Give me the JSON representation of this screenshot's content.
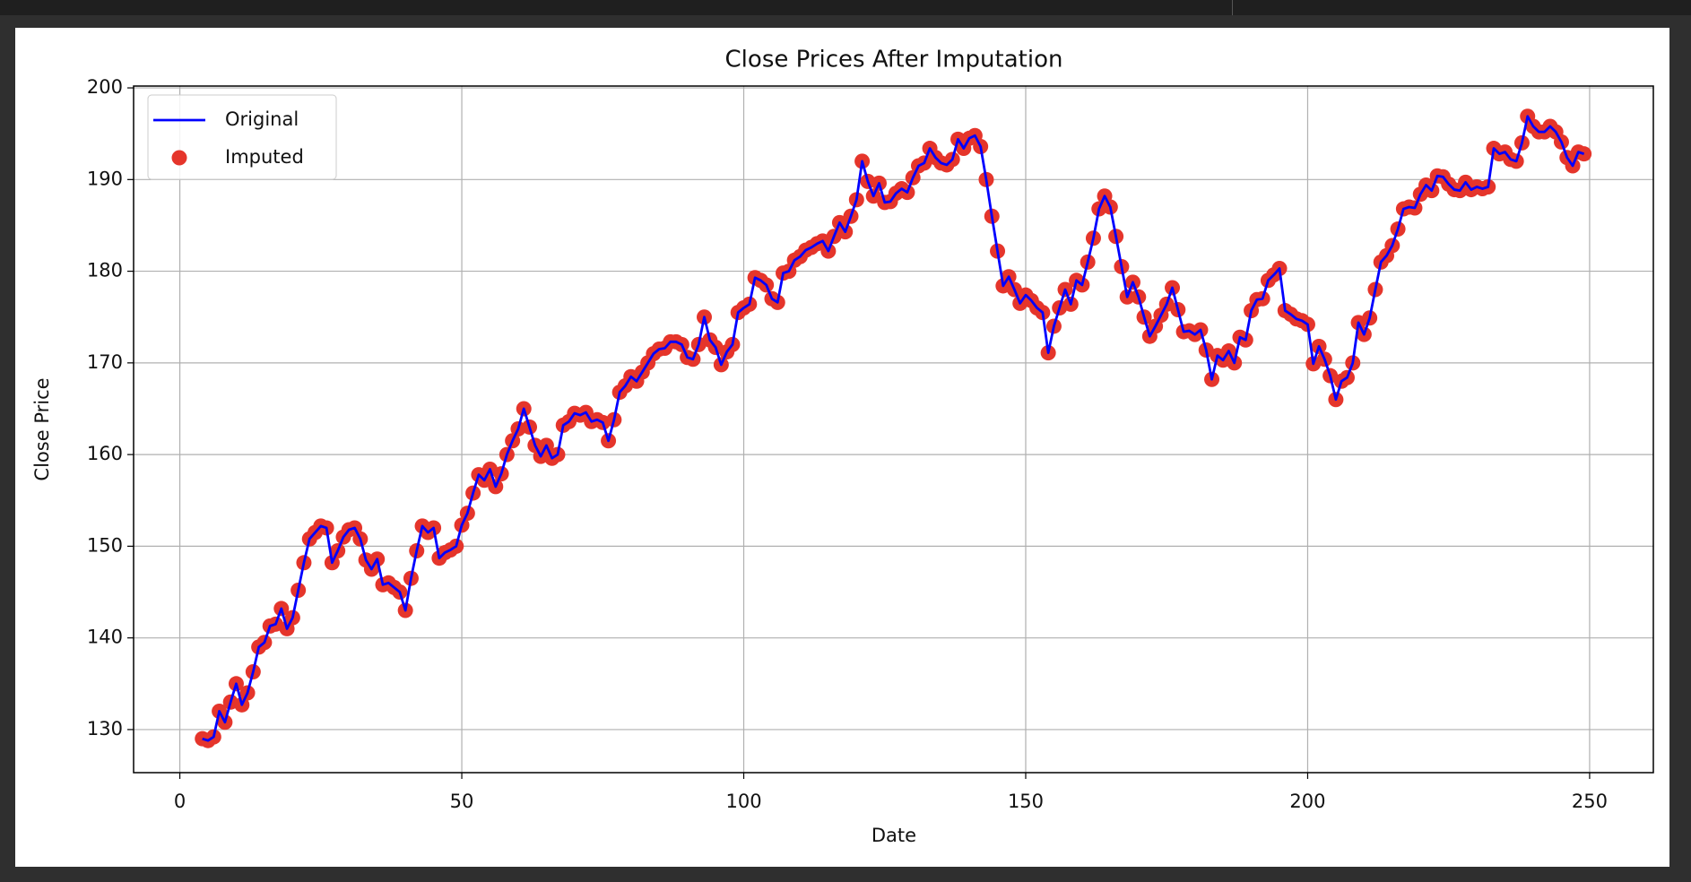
{
  "chart_data": {
    "type": "line",
    "title": "Close Prices After Imputation",
    "x_label": "Date",
    "y_label": "Close Price",
    "x": [
      4,
      5,
      6,
      7,
      8,
      9,
      10,
      11,
      12,
      13,
      14,
      15,
      16,
      17,
      18,
      19,
      20,
      21,
      22,
      23,
      24,
      25,
      26,
      27,
      28,
      29,
      30,
      31,
      32,
      33,
      34,
      35,
      36,
      37,
      38,
      39,
      40,
      41,
      42,
      43,
      44,
      45,
      46,
      47,
      48,
      49,
      50,
      51,
      52,
      53,
      54,
      55,
      56,
      57,
      58,
      59,
      60,
      61,
      62,
      63,
      64,
      65,
      66,
      67,
      68,
      69,
      70,
      71,
      72,
      73,
      74,
      75,
      76,
      77,
      78,
      79,
      80,
      81,
      82,
      83,
      84,
      85,
      86,
      87,
      88,
      89,
      90,
      91,
      92,
      93,
      94,
      95,
      96,
      97,
      98,
      99,
      100,
      101,
      102,
      103,
      104,
      105,
      106,
      107,
      108,
      109,
      110,
      111,
      112,
      113,
      114,
      115,
      116,
      117,
      118,
      119,
      120,
      121,
      122,
      123,
      124,
      125,
      126,
      127,
      128,
      129,
      130,
      131,
      132,
      133,
      134,
      135,
      136,
      137,
      138,
      139,
      140,
      141,
      142,
      143,
      144,
      145,
      146,
      147,
      148,
      149,
      150,
      151,
      152,
      153,
      154,
      155,
      156,
      157,
      158,
      159,
      160,
      161,
      162,
      163,
      164,
      165,
      166,
      167,
      168,
      169,
      170,
      171,
      172,
      173,
      174,
      175,
      176,
      177,
      178,
      179,
      180,
      181,
      182,
      183,
      184,
      185,
      186,
      187,
      188,
      189,
      190,
      191,
      192,
      193,
      194,
      195,
      196,
      197,
      198,
      199,
      200,
      201,
      202,
      203,
      204,
      205,
      206,
      207,
      208,
      209,
      210,
      211,
      212,
      213,
      214,
      215,
      216,
      217,
      218,
      219,
      220,
      221,
      222,
      223,
      224,
      225,
      226,
      227,
      228,
      229,
      230,
      231,
      232,
      233,
      234,
      235,
      236,
      237,
      238,
      239,
      240,
      241,
      242,
      243,
      244,
      245,
      246,
      247,
      248,
      249
    ],
    "series": [
      {
        "name": "Original",
        "color": "#0000ff",
        "style": "line",
        "values": [
          129,
          128.8,
          129.2,
          132,
          130.8,
          133,
          135,
          132.7,
          134,
          136.3,
          139,
          139.5,
          141.3,
          141.5,
          143.2,
          141,
          142.2,
          145.2,
          148.2,
          150.8,
          151.5,
          152.2,
          152,
          148.2,
          149.5,
          151,
          151.8,
          152,
          150.8,
          148.5,
          147.5,
          148.6,
          145.8,
          146,
          145.5,
          145,
          143,
          146.5,
          149.5,
          152.2,
          151.5,
          152,
          148.7,
          149.3,
          149.6,
          150,
          152.3,
          153.6,
          155.8,
          157.8,
          157.2,
          158.4,
          156.5,
          157.9,
          160,
          161.5,
          162.8,
          165,
          163,
          161,
          159.8,
          161,
          159.6,
          160,
          163.2,
          163.6,
          164.5,
          164.3,
          164.6,
          163.6,
          163.8,
          163.5,
          161.5,
          163.8,
          166.8,
          167.5,
          168.5,
          168,
          169,
          170,
          171,
          171.5,
          171.6,
          172.3,
          172.3,
          172,
          170.6,
          170.4,
          172,
          175,
          172.5,
          171.7,
          169.8,
          171.2,
          172,
          175.5,
          176,
          176.4,
          179.3,
          179,
          178.5,
          177,
          176.6,
          179.8,
          180,
          181.2,
          181.6,
          182.3,
          182.6,
          183,
          183.3,
          182.2,
          183.8,
          185.3,
          184.3,
          186,
          187.8,
          192,
          189.8,
          188.2,
          189.6,
          187.5,
          187.6,
          188.5,
          189,
          188.6,
          190.2,
          191.5,
          191.8,
          193.4,
          192.4,
          191.8,
          191.6,
          192.2,
          194.4,
          193.4,
          194.5,
          194.8,
          193.6,
          190,
          186,
          182.2,
          178.4,
          179.4,
          178,
          176.5,
          177.4,
          176.8,
          176,
          175.5,
          171.1,
          174,
          176,
          178,
          176.4,
          179,
          178.5,
          181,
          183.6,
          186.8,
          188.2,
          187,
          183.8,
          180.5,
          177.2,
          178.8,
          177.2,
          175,
          172.9,
          174,
          175.2,
          176.4,
          178.2,
          175.8,
          173.4,
          173.5,
          173.1,
          173.6,
          171.4,
          168.2,
          170.8,
          170.3,
          171.3,
          170,
          172.8,
          172.5,
          175.7,
          176.9,
          177,
          179,
          179.6,
          180.3,
          175.7,
          175.3,
          174.8,
          174.6,
          174.2,
          169.9,
          171.8,
          170.4,
          168.6,
          166,
          168,
          168.4,
          170,
          174.4,
          173.1,
          174.9,
          178,
          181,
          181.7,
          182.8,
          184.6,
          186.8,
          187,
          186.9,
          188.4,
          189.4,
          188.8,
          190.4,
          190.3,
          189.5,
          188.9,
          188.8,
          189.7,
          188.9,
          189.2,
          189,
          189.2,
          193.4,
          192.8,
          193,
          192.2,
          192,
          194,
          196.9,
          195.8,
          195.2,
          195.2,
          195.8,
          195.2,
          194.1,
          192.4,
          191.5,
          193,
          192.8
        ]
      },
      {
        "name": "Imputed",
        "color": "#e5352b",
        "style": "scatter",
        "values": [
          129,
          128.8,
          129.2,
          132,
          130.8,
          133,
          135,
          132.7,
          134,
          136.3,
          139,
          139.5,
          141.3,
          141.5,
          143.2,
          141,
          142.2,
          145.2,
          148.2,
          150.8,
          151.5,
          152.2,
          152,
          148.2,
          149.5,
          151,
          151.8,
          152,
          150.8,
          148.5,
          147.5,
          148.6,
          145.8,
          146,
          145.5,
          145,
          143,
          146.5,
          149.5,
          152.2,
          151.5,
          152,
          148.7,
          149.3,
          149.6,
          150,
          152.3,
          153.6,
          155.8,
          157.8,
          157.2,
          158.4,
          156.5,
          157.9,
          160,
          161.5,
          162.8,
          165,
          163,
          161,
          159.8,
          161,
          159.6,
          160,
          163.2,
          163.6,
          164.5,
          164.3,
          164.6,
          163.6,
          163.8,
          163.5,
          161.5,
          163.8,
          166.8,
          167.5,
          168.5,
          168,
          169,
          170,
          171,
          171.5,
          171.6,
          172.3,
          172.3,
          172,
          170.6,
          170.4,
          172,
          175,
          172.5,
          171.7,
          169.8,
          171.2,
          172,
          175.5,
          176,
          176.4,
          179.3,
          179,
          178.5,
          177,
          176.6,
          179.8,
          180,
          181.2,
          181.6,
          182.3,
          182.6,
          183,
          183.3,
          182.2,
          183.8,
          185.3,
          184.3,
          186,
          187.8,
          192,
          189.8,
          188.2,
          189.6,
          187.5,
          187.6,
          188.5,
          189,
          188.6,
          190.2,
          191.5,
          191.8,
          193.4,
          192.4,
          191.8,
          191.6,
          192.2,
          194.4,
          193.4,
          194.5,
          194.8,
          193.6,
          190,
          186,
          182.2,
          178.4,
          179.4,
          178,
          176.5,
          177.4,
          176.8,
          176,
          175.5,
          171.1,
          174,
          176,
          178,
          176.4,
          179,
          178.5,
          181,
          183.6,
          186.8,
          188.2,
          187,
          183.8,
          180.5,
          177.2,
          178.8,
          177.2,
          175,
          172.9,
          174,
          175.2,
          176.4,
          178.2,
          175.8,
          173.4,
          173.5,
          173.1,
          173.6,
          171.4,
          168.2,
          170.8,
          170.3,
          171.3,
          170,
          172.8,
          172.5,
          175.7,
          176.9,
          177,
          179,
          179.6,
          180.3,
          175.7,
          175.3,
          174.8,
          174.6,
          174.2,
          169.9,
          171.8,
          170.4,
          168.6,
          166,
          168,
          168.4,
          170,
          174.4,
          173.1,
          174.9,
          178,
          181,
          181.7,
          182.8,
          184.6,
          186.8,
          187,
          186.9,
          188.4,
          189.4,
          188.8,
          190.4,
          190.3,
          189.5,
          188.9,
          188.8,
          189.7,
          188.9,
          189.2,
          189,
          189.2,
          193.4,
          192.8,
          193,
          192.2,
          192,
          194,
          196.9,
          195.8,
          195.2,
          195.2,
          195.8,
          195.2,
          194.1,
          192.4,
          191.5,
          193,
          192.8
        ]
      }
    ],
    "xlim": [
      -8.2,
      261.3
    ],
    "xticks": [
      0,
      50,
      100,
      150,
      200,
      250
    ],
    "ylim": [
      125.3,
      200.2
    ],
    "yticks": [
      130,
      140,
      150,
      160,
      170,
      180,
      190,
      200
    ],
    "grid": true,
    "legend": "upper left"
  }
}
